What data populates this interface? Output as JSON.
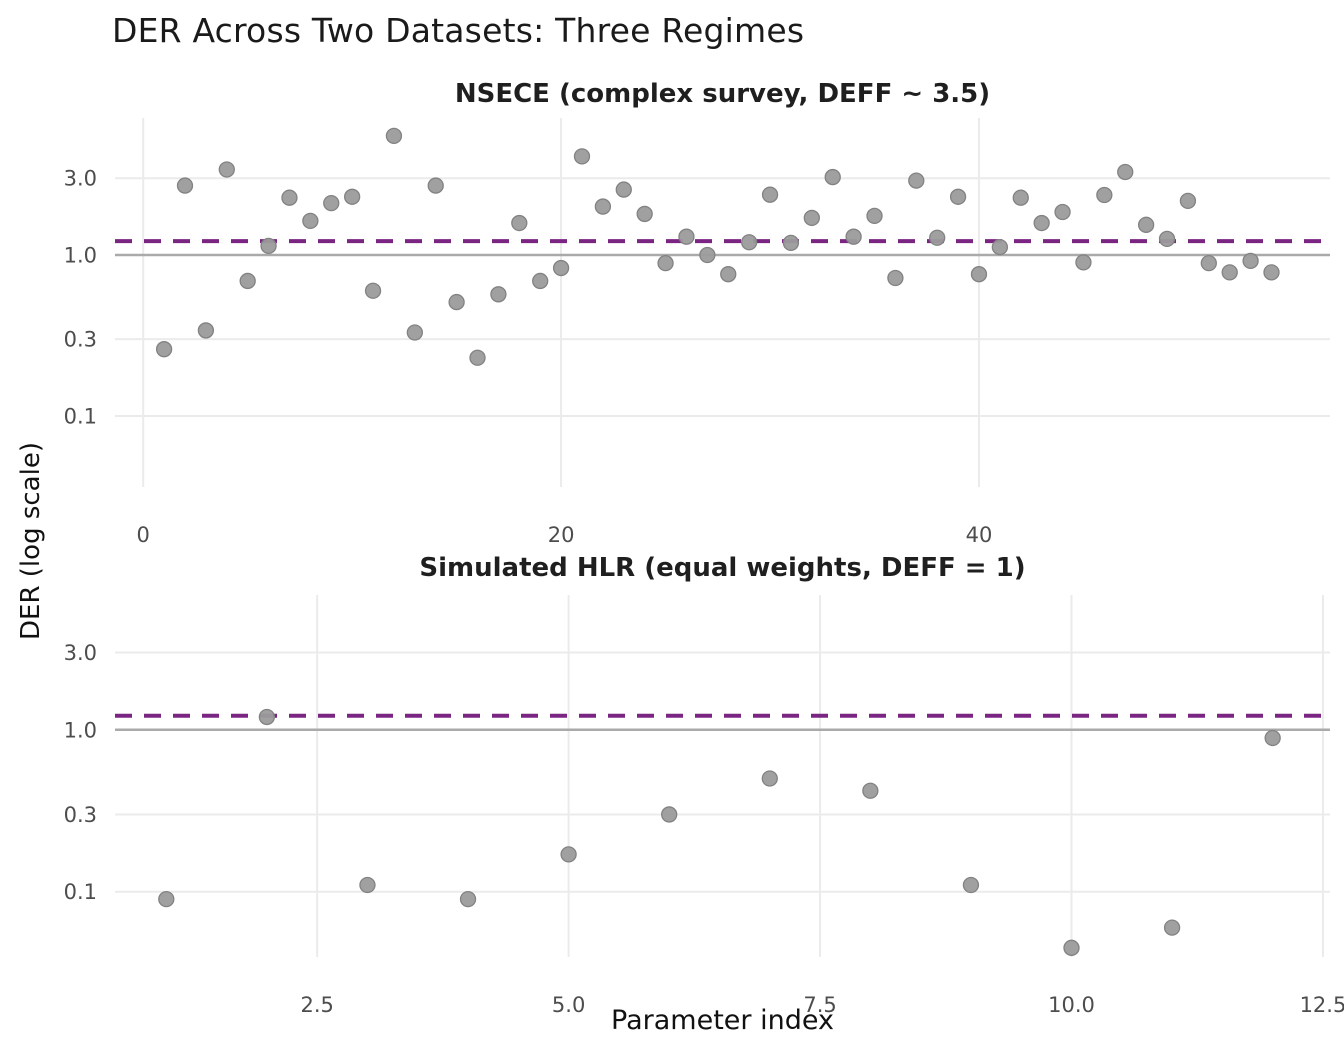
{
  "title": "DER Across Two Datasets: Three Regimes",
  "ylabel": "DER (log scale)",
  "xlabel": "Parameter index",
  "colors": {
    "background": "#ffffff",
    "gridline": "#ebebeb",
    "point_fill": "#9b9b9b",
    "point_stroke": "#828282",
    "ref_solid": "#aaaaaa",
    "ref_dashed": "#7b2583",
    "tick_text": "#4d4d4d",
    "title_text": "#1a1a1a"
  },
  "chart_data": [
    {
      "type": "scatter",
      "panel_title": "NSECE (complex survey, DEFF ~ 3.5)",
      "x": [
        1,
        2,
        3,
        4,
        5,
        6,
        7,
        8,
        9,
        10,
        11,
        12,
        13,
        14,
        15,
        16,
        17,
        18,
        19,
        20,
        21,
        22,
        23,
        24,
        25,
        26,
        27,
        28,
        29,
        30,
        31,
        32,
        33,
        34,
        35,
        36,
        37,
        38,
        39,
        40,
        41,
        42,
        43,
        44,
        45,
        46,
        47,
        48,
        49,
        50,
        51,
        52,
        53,
        54
      ],
      "y": [
        0.26,
        2.7,
        0.34,
        3.4,
        0.69,
        1.14,
        2.27,
        1.63,
        2.1,
        2.3,
        0.6,
        5.5,
        0.33,
        2.7,
        0.51,
        0.23,
        0.57,
        1.58,
        0.69,
        0.83,
        4.1,
        2.0,
        2.55,
        1.8,
        0.89,
        1.3,
        1.0,
        0.76,
        1.2,
        2.37,
        1.19,
        1.7,
        3.05,
        1.3,
        1.75,
        0.72,
        2.9,
        1.28,
        2.3,
        0.76,
        1.12,
        2.27,
        1.58,
        1.85,
        0.9,
        2.36,
        3.28,
        1.54,
        1.26,
        2.17,
        0.89,
        0.78,
        0.92,
        0.78
      ],
      "x_ticks": [
        0,
        20,
        40
      ],
      "x_tick_labels": [
        "0",
        "20",
        "40"
      ],
      "y_ticks": [
        3.0,
        1.0,
        0.3,
        0.1
      ],
      "y_tick_labels": [
        "3.0",
        "1.0",
        "0.3",
        "0.1"
      ],
      "ref_solid": 1.0,
      "ref_dashed": 1.22,
      "xlim": [
        -1.35,
        56.8
      ],
      "ylim": [
        0.0362,
        7.1
      ],
      "y_scale": "log10",
      "grid": true,
      "legend": "none"
    },
    {
      "type": "scatter",
      "panel_title": "Simulated HLR (equal weights, DEFF = 1)",
      "x": [
        1,
        2,
        3,
        4,
        5,
        6,
        7,
        8,
        9,
        10,
        11,
        12
      ],
      "y": [
        0.09,
        1.2,
        0.11,
        0.09,
        0.17,
        0.3,
        0.5,
        0.42,
        0.11,
        0.045,
        0.06,
        0.89
      ],
      "x_ticks": [
        2.5,
        5.0,
        7.5,
        10.0,
        12.5
      ],
      "x_tick_labels": [
        "2.5",
        "5.0",
        "7.5",
        "10.0",
        "12.5"
      ],
      "y_ticks": [
        3.0,
        1.0,
        0.3,
        0.1
      ],
      "y_tick_labels": [
        "3.0",
        "1.0",
        "0.3",
        "0.1"
      ],
      "ref_solid": 1.0,
      "ref_dashed": 1.22,
      "xlim": [
        0.49,
        12.57
      ],
      "ylim": [
        0.0395,
        6.8
      ],
      "y_scale": "log10",
      "grid": true,
      "legend": "none"
    }
  ]
}
